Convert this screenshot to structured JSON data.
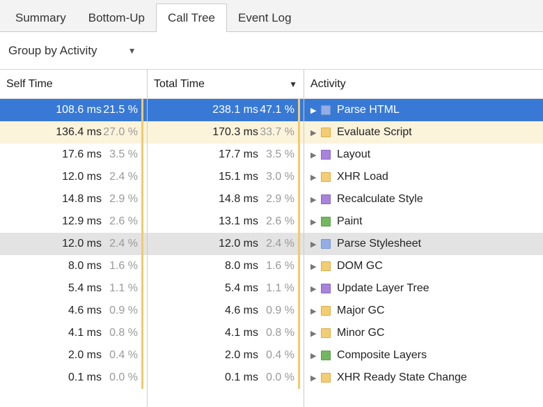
{
  "tabs": [
    {
      "label": "Summary",
      "selected": false
    },
    {
      "label": "Bottom-Up",
      "selected": false
    },
    {
      "label": "Call Tree",
      "selected": true
    },
    {
      "label": "Event Log",
      "selected": false
    }
  ],
  "toolbar": {
    "group_by_label": "Group by Activity",
    "dropdown_icon": "▼"
  },
  "table": {
    "columns": {
      "self": "Self Time",
      "total": "Total Time",
      "activity": "Activity",
      "sort_icon": "▼"
    },
    "expand_icon": "▶",
    "colors": {
      "selection_bg": "#3879D6",
      "selection_text": "#ffffff",
      "tinted_row_bg": "#FCF3DB",
      "hover_row_bg": "#E3E3E3",
      "pct_text": "#999999",
      "ms_text": "#222222",
      "triangle": "#777777",
      "pct_bar": "#F2CA6B"
    },
    "palette": {
      "blue": {
        "fill": "#92AEE4",
        "border": "#7A97CE"
      },
      "yellow": {
        "fill": "#F3CD71",
        "border": "#D9AE4F"
      },
      "purple": {
        "fill": "#A883DC",
        "border": "#8A66C2"
      },
      "green": {
        "fill": "#74B662",
        "border": "#58A047"
      }
    },
    "rows": [
      {
        "self": "108.6 ms",
        "self_pct": "21.5 %",
        "total": "238.1 ms",
        "total_pct": "47.1 %",
        "activity": "Parse HTML",
        "color": "blue",
        "state": "selected"
      },
      {
        "self": "136.4 ms",
        "self_pct": "27.0 %",
        "total": "170.3 ms",
        "total_pct": "33.7 %",
        "activity": "Evaluate Script",
        "color": "yellow",
        "state": "tinted"
      },
      {
        "self": "17.6 ms",
        "self_pct": "3.5 %",
        "total": "17.7 ms",
        "total_pct": "3.5 %",
        "activity": "Layout",
        "color": "purple",
        "state": "normal"
      },
      {
        "self": "12.0 ms",
        "self_pct": "2.4 %",
        "total": "15.1 ms",
        "total_pct": "3.0 %",
        "activity": "XHR Load",
        "color": "yellow",
        "state": "normal"
      },
      {
        "self": "14.8 ms",
        "self_pct": "2.9 %",
        "total": "14.8 ms",
        "total_pct": "2.9 %",
        "activity": "Recalculate Style",
        "color": "purple",
        "state": "normal"
      },
      {
        "self": "12.9 ms",
        "self_pct": "2.6 %",
        "total": "13.1 ms",
        "total_pct": "2.6 %",
        "activity": "Paint",
        "color": "green",
        "state": "normal"
      },
      {
        "self": "12.0 ms",
        "self_pct": "2.4 %",
        "total": "12.0 ms",
        "total_pct": "2.4 %",
        "activity": "Parse Stylesheet",
        "color": "blue",
        "state": "hover"
      },
      {
        "self": "8.0 ms",
        "self_pct": "1.6 %",
        "total": "8.0 ms",
        "total_pct": "1.6 %",
        "activity": "DOM GC",
        "color": "yellow",
        "state": "normal"
      },
      {
        "self": "5.4 ms",
        "self_pct": "1.1 %",
        "total": "5.4 ms",
        "total_pct": "1.1 %",
        "activity": "Update Layer Tree",
        "color": "purple",
        "state": "normal"
      },
      {
        "self": "4.6 ms",
        "self_pct": "0.9 %",
        "total": "4.6 ms",
        "total_pct": "0.9 %",
        "activity": "Major GC",
        "color": "yellow",
        "state": "normal"
      },
      {
        "self": "4.1 ms",
        "self_pct": "0.8 %",
        "total": "4.1 ms",
        "total_pct": "0.8 %",
        "activity": "Minor GC",
        "color": "yellow",
        "state": "normal"
      },
      {
        "self": "2.0 ms",
        "self_pct": "0.4 %",
        "total": "2.0 ms",
        "total_pct": "0.4 %",
        "activity": "Composite Layers",
        "color": "green",
        "state": "normal"
      },
      {
        "self": "0.1 ms",
        "self_pct": "0.0 %",
        "total": "0.1 ms",
        "total_pct": "0.0 %",
        "activity": "XHR Ready State Change",
        "color": "yellow",
        "state": "normal"
      }
    ]
  }
}
